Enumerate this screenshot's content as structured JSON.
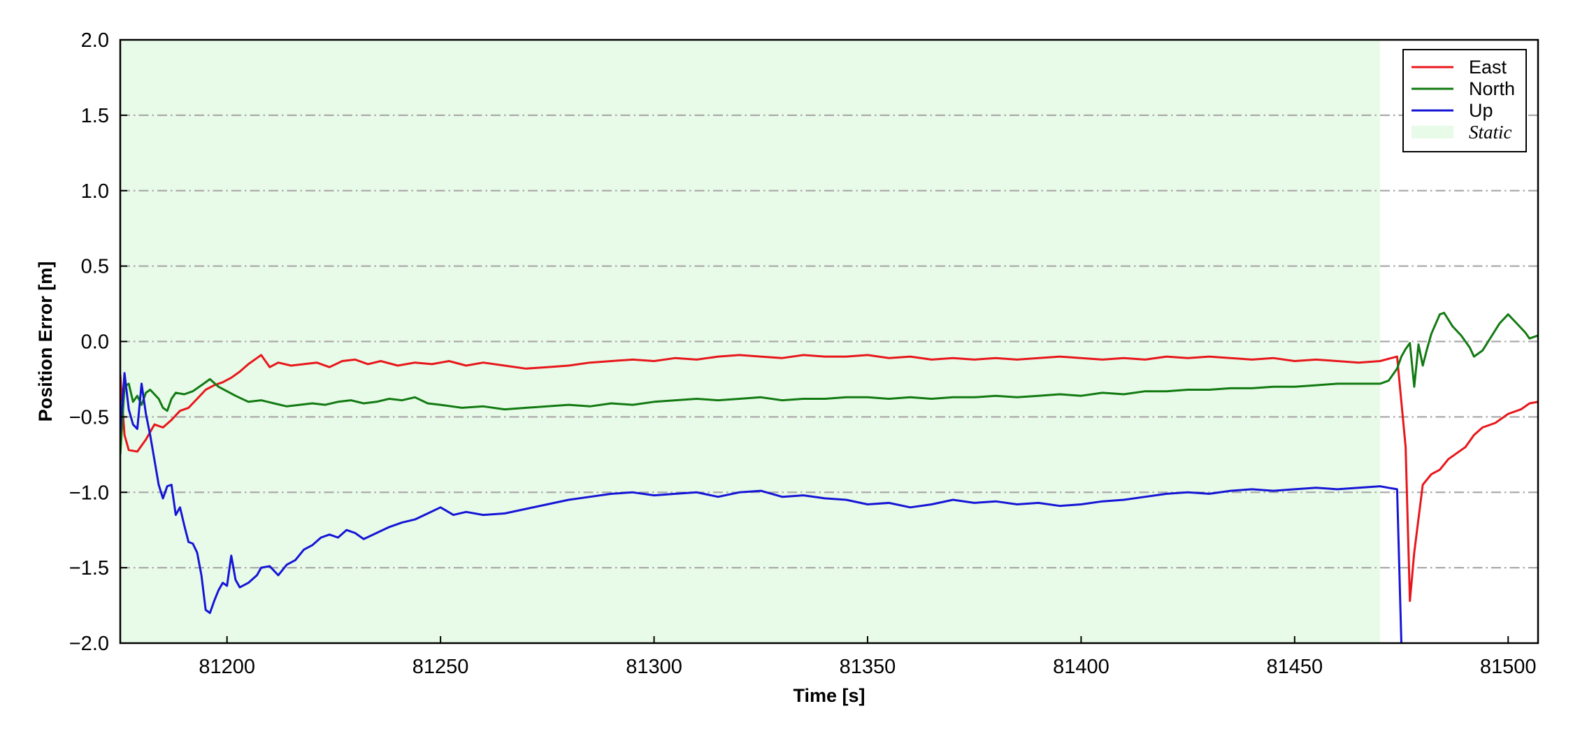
{
  "chart_data": {
    "type": "line",
    "xlabel": "Time [s]",
    "ylabel": "Position Error [m]",
    "xlim": [
      81175,
      81507
    ],
    "ylim": [
      -2.0,
      2.0
    ],
    "x_ticks": [
      81200,
      81250,
      81300,
      81350,
      81400,
      81450,
      81500
    ],
    "x_tick_labels": [
      "81200",
      "81250",
      "81300",
      "81350",
      "81400",
      "81450",
      "81500"
    ],
    "y_ticks": [
      -2.0,
      -1.5,
      -1.0,
      -0.5,
      0.0,
      0.5,
      1.0,
      1.5,
      2.0
    ],
    "y_tick_labels": [
      "−2.0",
      "−1.5",
      "−1.0",
      "−0.5",
      "0.0",
      "0.5",
      "1.0",
      "1.5",
      "2.0"
    ],
    "grid": "horizontal dash-dot",
    "legend_position": "top-right",
    "static_region": {
      "label": "Static",
      "x": [
        81175,
        81470
      ],
      "color": "#e8fbe8"
    },
    "series": [
      {
        "name": "East",
        "color": "#e8161b",
        "points": [
          [
            81175,
            -0.22
          ],
          [
            81176,
            -0.62
          ],
          [
            81177,
            -0.72
          ],
          [
            81179,
            -0.73
          ],
          [
            81181,
            -0.65
          ],
          [
            81183,
            -0.55
          ],
          [
            81185,
            -0.57
          ],
          [
            81187,
            -0.52
          ],
          [
            81189,
            -0.46
          ],
          [
            81191,
            -0.44
          ],
          [
            81193,
            -0.38
          ],
          [
            81195,
            -0.32
          ],
          [
            81197,
            -0.29
          ],
          [
            81199,
            -0.27
          ],
          [
            81201,
            -0.24
          ],
          [
            81203,
            -0.2
          ],
          [
            81205,
            -0.15
          ],
          [
            81207,
            -0.11
          ],
          [
            81208,
            -0.09
          ],
          [
            81210,
            -0.17
          ],
          [
            81212,
            -0.14
          ],
          [
            81215,
            -0.16
          ],
          [
            81218,
            -0.15
          ],
          [
            81221,
            -0.14
          ],
          [
            81224,
            -0.17
          ],
          [
            81227,
            -0.13
          ],
          [
            81230,
            -0.12
          ],
          [
            81233,
            -0.15
          ],
          [
            81236,
            -0.13
          ],
          [
            81240,
            -0.16
          ],
          [
            81244,
            -0.14
          ],
          [
            81248,
            -0.15
          ],
          [
            81252,
            -0.13
          ],
          [
            81256,
            -0.16
          ],
          [
            81260,
            -0.14
          ],
          [
            81265,
            -0.16
          ],
          [
            81270,
            -0.18
          ],
          [
            81275,
            -0.17
          ],
          [
            81280,
            -0.16
          ],
          [
            81285,
            -0.14
          ],
          [
            81290,
            -0.13
          ],
          [
            81295,
            -0.12
          ],
          [
            81300,
            -0.13
          ],
          [
            81305,
            -0.11
          ],
          [
            81310,
            -0.12
          ],
          [
            81315,
            -0.1
          ],
          [
            81320,
            -0.09
          ],
          [
            81325,
            -0.1
          ],
          [
            81330,
            -0.11
          ],
          [
            81335,
            -0.09
          ],
          [
            81340,
            -0.1
          ],
          [
            81345,
            -0.1
          ],
          [
            81350,
            -0.09
          ],
          [
            81355,
            -0.11
          ],
          [
            81360,
            -0.1
          ],
          [
            81365,
            -0.12
          ],
          [
            81370,
            -0.11
          ],
          [
            81375,
            -0.12
          ],
          [
            81380,
            -0.11
          ],
          [
            81385,
            -0.12
          ],
          [
            81390,
            -0.11
          ],
          [
            81395,
            -0.1
          ],
          [
            81400,
            -0.11
          ],
          [
            81405,
            -0.12
          ],
          [
            81410,
            -0.11
          ],
          [
            81415,
            -0.12
          ],
          [
            81420,
            -0.1
          ],
          [
            81425,
            -0.11
          ],
          [
            81430,
            -0.1
          ],
          [
            81435,
            -0.11
          ],
          [
            81440,
            -0.12
          ],
          [
            81445,
            -0.11
          ],
          [
            81450,
            -0.13
          ],
          [
            81455,
            -0.12
          ],
          [
            81460,
            -0.13
          ],
          [
            81465,
            -0.14
          ],
          [
            81470,
            -0.13
          ],
          [
            81474,
            -0.1
          ],
          [
            81476,
            -0.7
          ],
          [
            81477,
            -1.72
          ],
          [
            81478,
            -1.4
          ],
          [
            81480,
            -0.95
          ],
          [
            81482,
            -0.88
          ],
          [
            81484,
            -0.85
          ],
          [
            81486,
            -0.78
          ],
          [
            81488,
            -0.74
          ],
          [
            81490,
            -0.7
          ],
          [
            81492,
            -0.62
          ],
          [
            81494,
            -0.57
          ],
          [
            81497,
            -0.54
          ],
          [
            81500,
            -0.48
          ],
          [
            81503,
            -0.45
          ],
          [
            81505,
            -0.41
          ],
          [
            81507,
            -0.4
          ]
        ]
      },
      {
        "name": "North",
        "color": "#127a12",
        "points": [
          [
            81175,
            -0.75
          ],
          [
            81176,
            -0.3
          ],
          [
            81177,
            -0.28
          ],
          [
            81178,
            -0.4
          ],
          [
            81179,
            -0.36
          ],
          [
            81180,
            -0.42
          ],
          [
            81181,
            -0.34
          ],
          [
            81182,
            -0.32
          ],
          [
            81184,
            -0.38
          ],
          [
            81185,
            -0.44
          ],
          [
            81186,
            -0.46
          ],
          [
            81187,
            -0.38
          ],
          [
            81188,
            -0.34
          ],
          [
            81190,
            -0.35
          ],
          [
            81192,
            -0.33
          ],
          [
            81194,
            -0.29
          ],
          [
            81196,
            -0.25
          ],
          [
            81198,
            -0.3
          ],
          [
            81200,
            -0.33
          ],
          [
            81202,
            -0.36
          ],
          [
            81205,
            -0.4
          ],
          [
            81208,
            -0.39
          ],
          [
            81211,
            -0.41
          ],
          [
            81214,
            -0.43
          ],
          [
            81217,
            -0.42
          ],
          [
            81220,
            -0.41
          ],
          [
            81223,
            -0.42
          ],
          [
            81226,
            -0.4
          ],
          [
            81229,
            -0.39
          ],
          [
            81232,
            -0.41
          ],
          [
            81235,
            -0.4
          ],
          [
            81238,
            -0.38
          ],
          [
            81241,
            -0.39
          ],
          [
            81244,
            -0.37
          ],
          [
            81247,
            -0.41
          ],
          [
            81250,
            -0.42
          ],
          [
            81255,
            -0.44
          ],
          [
            81260,
            -0.43
          ],
          [
            81265,
            -0.45
          ],
          [
            81270,
            -0.44
          ],
          [
            81275,
            -0.43
          ],
          [
            81280,
            -0.42
          ],
          [
            81285,
            -0.43
          ],
          [
            81290,
            -0.41
          ],
          [
            81295,
            -0.42
          ],
          [
            81300,
            -0.4
          ],
          [
            81305,
            -0.39
          ],
          [
            81310,
            -0.38
          ],
          [
            81315,
            -0.39
          ],
          [
            81320,
            -0.38
          ],
          [
            81325,
            -0.37
          ],
          [
            81330,
            -0.39
          ],
          [
            81335,
            -0.38
          ],
          [
            81340,
            -0.38
          ],
          [
            81345,
            -0.37
          ],
          [
            81350,
            -0.37
          ],
          [
            81355,
            -0.38
          ],
          [
            81360,
            -0.37
          ],
          [
            81365,
            -0.38
          ],
          [
            81370,
            -0.37
          ],
          [
            81375,
            -0.37
          ],
          [
            81380,
            -0.36
          ],
          [
            81385,
            -0.37
          ],
          [
            81390,
            -0.36
          ],
          [
            81395,
            -0.35
          ],
          [
            81400,
            -0.36
          ],
          [
            81405,
            -0.34
          ],
          [
            81410,
            -0.35
          ],
          [
            81415,
            -0.33
          ],
          [
            81420,
            -0.33
          ],
          [
            81425,
            -0.32
          ],
          [
            81430,
            -0.32
          ],
          [
            81435,
            -0.31
          ],
          [
            81440,
            -0.31
          ],
          [
            81445,
            -0.3
          ],
          [
            81450,
            -0.3
          ],
          [
            81455,
            -0.29
          ],
          [
            81460,
            -0.28
          ],
          [
            81465,
            -0.28
          ],
          [
            81470,
            -0.28
          ],
          [
            81472,
            -0.26
          ],
          [
            81474,
            -0.18
          ],
          [
            81475,
            -0.1
          ],
          [
            81476,
            -0.05
          ],
          [
            81477,
            -0.01
          ],
          [
            81478,
            -0.3
          ],
          [
            81479,
            -0.02
          ],
          [
            81480,
            -0.16
          ],
          [
            81481,
            -0.05
          ],
          [
            81482,
            0.05
          ],
          [
            81484,
            0.18
          ],
          [
            81485,
            0.19
          ],
          [
            81487,
            0.1
          ],
          [
            81489,
            0.04
          ],
          [
            81491,
            -0.04
          ],
          [
            81492,
            -0.1
          ],
          [
            81494,
            -0.06
          ],
          [
            81496,
            0.03
          ],
          [
            81498,
            0.12
          ],
          [
            81500,
            0.18
          ],
          [
            81502,
            0.12
          ],
          [
            81504,
            0.06
          ],
          [
            81505,
            0.02
          ],
          [
            81507,
            0.04
          ]
        ]
      },
      {
        "name": "Up",
        "color": "#1515d6",
        "points": [
          [
            81175,
            -0.6
          ],
          [
            81176,
            -0.21
          ],
          [
            81177,
            -0.45
          ],
          [
            81178,
            -0.55
          ],
          [
            81179,
            -0.58
          ],
          [
            81180,
            -0.28
          ],
          [
            81181,
            -0.48
          ],
          [
            81182,
            -0.62
          ],
          [
            81184,
            -0.95
          ],
          [
            81185,
            -1.04
          ],
          [
            81186,
            -0.96
          ],
          [
            81187,
            -0.95
          ],
          [
            81188,
            -1.15
          ],
          [
            81189,
            -1.1
          ],
          [
            81190,
            -1.22
          ],
          [
            81191,
            -1.33
          ],
          [
            81192,
            -1.34
          ],
          [
            81193,
            -1.4
          ],
          [
            81194,
            -1.55
          ],
          [
            81195,
            -1.78
          ],
          [
            81196,
            -1.8
          ],
          [
            81197,
            -1.72
          ],
          [
            81198,
            -1.65
          ],
          [
            81199,
            -1.6
          ],
          [
            81200,
            -1.62
          ],
          [
            81201,
            -1.42
          ],
          [
            81202,
            -1.58
          ],
          [
            81203,
            -1.63
          ],
          [
            81205,
            -1.6
          ],
          [
            81207,
            -1.55
          ],
          [
            81208,
            -1.5
          ],
          [
            81210,
            -1.49
          ],
          [
            81212,
            -1.55
          ],
          [
            81214,
            -1.48
          ],
          [
            81216,
            -1.45
          ],
          [
            81218,
            -1.38
          ],
          [
            81220,
            -1.35
          ],
          [
            81222,
            -1.3
          ],
          [
            81224,
            -1.28
          ],
          [
            81226,
            -1.3
          ],
          [
            81228,
            -1.25
          ],
          [
            81230,
            -1.27
          ],
          [
            81232,
            -1.31
          ],
          [
            81235,
            -1.27
          ],
          [
            81238,
            -1.23
          ],
          [
            81241,
            -1.2
          ],
          [
            81244,
            -1.18
          ],
          [
            81247,
            -1.14
          ],
          [
            81250,
            -1.1
          ],
          [
            81253,
            -1.15
          ],
          [
            81256,
            -1.13
          ],
          [
            81260,
            -1.15
          ],
          [
            81265,
            -1.14
          ],
          [
            81270,
            -1.11
          ],
          [
            81275,
            -1.08
          ],
          [
            81280,
            -1.05
          ],
          [
            81285,
            -1.03
          ],
          [
            81290,
            -1.01
          ],
          [
            81295,
            -1.0
          ],
          [
            81300,
            -1.02
          ],
          [
            81305,
            -1.01
          ],
          [
            81310,
            -1.0
          ],
          [
            81315,
            -1.03
          ],
          [
            81320,
            -1.0
          ],
          [
            81325,
            -0.99
          ],
          [
            81330,
            -1.03
          ],
          [
            81335,
            -1.02
          ],
          [
            81340,
            -1.04
          ],
          [
            81345,
            -1.05
          ],
          [
            81350,
            -1.08
          ],
          [
            81355,
            -1.07
          ],
          [
            81360,
            -1.1
          ],
          [
            81365,
            -1.08
          ],
          [
            81370,
            -1.05
          ],
          [
            81375,
            -1.07
          ],
          [
            81380,
            -1.06
          ],
          [
            81385,
            -1.08
          ],
          [
            81390,
            -1.07
          ],
          [
            81395,
            -1.09
          ],
          [
            81400,
            -1.08
          ],
          [
            81405,
            -1.06
          ],
          [
            81410,
            -1.05
          ],
          [
            81415,
            -1.03
          ],
          [
            81420,
            -1.01
          ],
          [
            81425,
            -1.0
          ],
          [
            81430,
            -1.01
          ],
          [
            81435,
            -0.99
          ],
          [
            81440,
            -0.98
          ],
          [
            81445,
            -0.99
          ],
          [
            81450,
            -0.98
          ],
          [
            81455,
            -0.97
          ],
          [
            81460,
            -0.98
          ],
          [
            81465,
            -0.97
          ],
          [
            81470,
            -0.96
          ],
          [
            81472,
            -0.97
          ],
          [
            81474,
            -0.98
          ],
          [
            81475,
            -2.0
          ]
        ]
      }
    ]
  }
}
